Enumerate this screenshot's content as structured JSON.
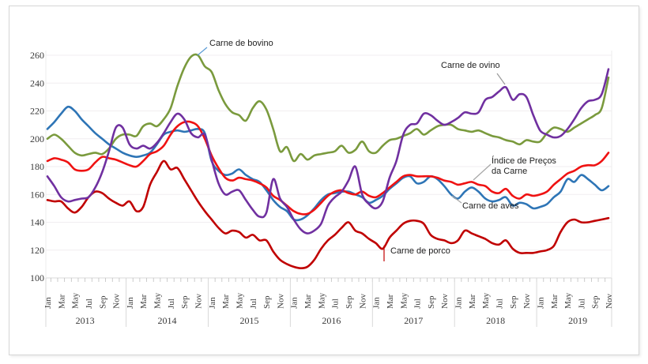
{
  "figure": {
    "background_color": "#ffffff",
    "frame_border_color": "#d6d6d6"
  },
  "chart_data": {
    "type": "line",
    "title": "",
    "x_axis": {
      "start": "Jan 2013",
      "end": "Nov 2019",
      "years": [
        "2013",
        "2014",
        "2015",
        "2016",
        "2017",
        "2018",
        "2019"
      ],
      "month_tick_labels": [
        "Jan",
        "Mar",
        "May",
        "Jul",
        "Sep",
        "Nov"
      ],
      "months_per_year": 12
    },
    "y_axis": {
      "min": 100,
      "max": 260,
      "step": 20,
      "ticks": [
        260,
        240,
        220,
        200,
        180,
        160,
        140,
        120,
        100
      ]
    },
    "grid": "horizontal",
    "legend": "inline-annotations",
    "series": [
      {
        "name": "Carne de bovino",
        "color": "#7a9a3d",
        "values": [
          200,
          203,
          200,
          195,
          190,
          188,
          189,
          190,
          189,
          193,
          200,
          203,
          203,
          202,
          209,
          211,
          209,
          214,
          222,
          238,
          251,
          259,
          260,
          252,
          248,
          235,
          225,
          219,
          217,
          213,
          222,
          227,
          221,
          207,
          191,
          194,
          184,
          189,
          185,
          188,
          189,
          190,
          191,
          195,
          190,
          192,
          198,
          191,
          190,
          195,
          199,
          200,
          202,
          204,
          207,
          203,
          206,
          209,
          210,
          210,
          207,
          206,
          205,
          206,
          204,
          202,
          201,
          199,
          198,
          196,
          199,
          198,
          198,
          204,
          208,
          207,
          205,
          208,
          211,
          214,
          217,
          222,
          244
        ]
      },
      {
        "name": "Carne de ovino",
        "color": "#7030a0",
        "values": [
          173,
          166,
          158,
          155,
          156,
          157,
          158,
          165,
          176,
          191,
          208,
          208,
          196,
          193,
          195,
          193,
          197,
          204,
          212,
          218,
          214,
          204,
          201,
          203,
          185,
          168,
          160,
          162,
          163,
          156,
          149,
          144,
          147,
          171,
          157,
          151,
          142,
          135,
          132,
          134,
          139,
          152,
          158,
          162,
          170,
          180,
          160,
          153,
          150,
          155,
          172,
          184,
          203,
          210,
          211,
          218,
          217,
          213,
          210,
          212,
          215,
          219,
          218,
          219,
          228,
          230,
          234,
          237,
          228,
          232,
          230,
          217,
          206,
          203,
          201,
          202,
          207,
          214,
          222,
          227,
          228,
          232,
          250
        ]
      },
      {
        "name": "Índice de Preços da Carne",
        "color": "#ef1212",
        "values": [
          184,
          186,
          185,
          183,
          178,
          177,
          178,
          183,
          187,
          186,
          185,
          183,
          181,
          180,
          184,
          189,
          191,
          195,
          203,
          209,
          212,
          212,
          209,
          200,
          188,
          179,
          172,
          170,
          172,
          171,
          170,
          168,
          165,
          159,
          156,
          152,
          148,
          146,
          146,
          149,
          154,
          159,
          162,
          163,
          161,
          160,
          162,
          159,
          158,
          161,
          165,
          169,
          173,
          174,
          173,
          173,
          173,
          172,
          170,
          169,
          167,
          168,
          169,
          167,
          166,
          162,
          161,
          164,
          159,
          157,
          160,
          159,
          160,
          162,
          167,
          171,
          175,
          177,
          180,
          181,
          181,
          184,
          190
        ]
      },
      {
        "name": "Carne de aves",
        "color": "#2e75b6",
        "values": [
          207,
          212,
          218,
          223,
          220,
          214,
          209,
          204,
          200,
          196,
          193,
          190,
          188,
          187,
          188,
          190,
          196,
          203,
          205,
          206,
          205,
          206,
          207,
          204,
          184,
          177,
          174,
          175,
          178,
          174,
          171,
          169,
          163,
          156,
          151,
          148,
          142,
          142,
          145,
          150,
          156,
          160,
          161,
          162,
          162,
          160,
          158,
          154,
          156,
          159,
          164,
          168,
          172,
          173,
          168,
          169,
          173,
          171,
          166,
          160,
          157,
          162,
          165,
          162,
          157,
          155,
          156,
          158,
          152,
          154,
          153,
          150,
          151,
          153,
          158,
          162,
          171,
          169,
          174,
          171,
          167,
          163,
          166
        ]
      },
      {
        "name": "Carne de porco",
        "color": "#c00000",
        "values": [
          156,
          155,
          155,
          150,
          147,
          151,
          158,
          162,
          161,
          157,
          154,
          152,
          155,
          148,
          151,
          167,
          176,
          184,
          178,
          179,
          171,
          163,
          155,
          148,
          142,
          136,
          132,
          134,
          133,
          129,
          131,
          127,
          127,
          119,
          113,
          110,
          108,
          107,
          108,
          113,
          121,
          127,
          131,
          136,
          140,
          134,
          132,
          128,
          125,
          121,
          129,
          134,
          139,
          141,
          141,
          139,
          131,
          128,
          127,
          125,
          127,
          134,
          132,
          130,
          128,
          125,
          124,
          127,
          121,
          118,
          118,
          118,
          119,
          120,
          123,
          133,
          140,
          142,
          140,
          140,
          141,
          142,
          143
        ]
      }
    ],
    "annotations": [
      {
        "text": "Carne de bovino",
        "series": "Carne de bovino"
      },
      {
        "text": "Carne de ovino",
        "series": "Carne de ovino"
      },
      {
        "text": "Índice de Preços da Carne",
        "series": "Índice de Preços da Carne"
      },
      {
        "text": "Carne de aves",
        "series": "Carne de aves"
      },
      {
        "text": "Carne de porco",
        "series": "Carne de porco"
      }
    ]
  }
}
